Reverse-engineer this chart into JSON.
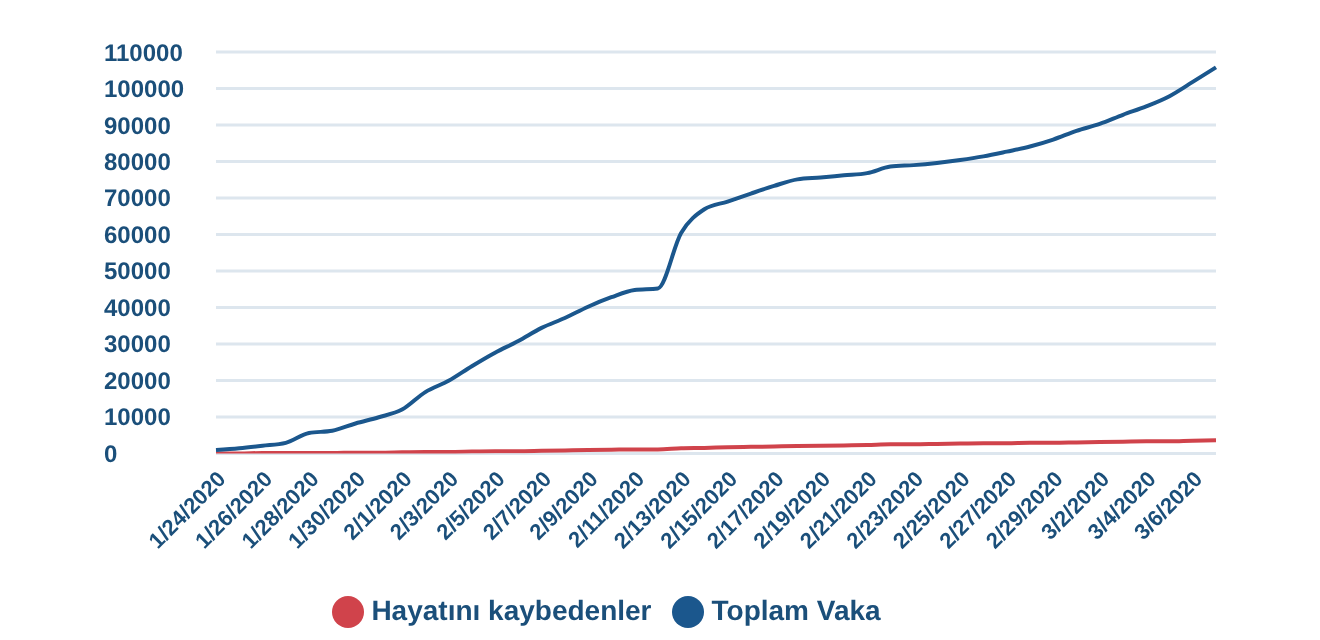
{
  "chart_data": {
    "type": "line",
    "categories": [
      "1/24/2020",
      null,
      "1/26/2020",
      null,
      "1/28/2020",
      null,
      "1/30/2020",
      null,
      "2/1/2020",
      null,
      "2/3/2020",
      null,
      "2/5/2020",
      null,
      "2/7/2020",
      null,
      "2/9/2020",
      null,
      "2/11/2020",
      null,
      "2/13/2020",
      null,
      "2/15/2020",
      null,
      "2/17/2020",
      null,
      "2/19/2020",
      null,
      "2/21/2020",
      null,
      "2/23/2020",
      null,
      "2/25/2020",
      null,
      "2/27/2020",
      null,
      "2/29/2020",
      null,
      "3/2/2020",
      null,
      "3/4/2020",
      null,
      "3/6/2020",
      null
    ],
    "series": [
      {
        "name": "Hayatını kaybedenler",
        "color": "#d0434b",
        "values": [
          0,
          0,
          100,
          100,
          100,
          100,
          200,
          200,
          300,
          400,
          400,
          500,
          600,
          600,
          700,
          800,
          900,
          1000,
          1100,
          1100,
          1400,
          1500,
          1700,
          1800,
          1900,
          2000,
          2100,
          2200,
          2300,
          2500,
          2500,
          2600,
          2700,
          2800,
          2800,
          2900,
          2900,
          3000,
          3100,
          3200,
          3300,
          3300,
          3500,
          3600
        ]
      },
      {
        "name": "Toplam Vaka",
        "color": "#1b578d",
        "values": [
          900,
          1400,
          2100,
          2900,
          5600,
          6200,
          8200,
          9900,
          12000,
          16800,
          19900,
          23900,
          27600,
          30800,
          34400,
          37100,
          40200,
          42800,
          44800,
          45200,
          60400,
          66900,
          69000,
          71200,
          73300,
          75100,
          75600,
          76200,
          76800,
          78600,
          79000,
          79600,
          80400,
          81400,
          82700,
          84100,
          86000,
          88400,
          90300,
          92800,
          95100,
          97900,
          101800,
          105800
        ]
      }
    ],
    "ylim": [
      0,
      110000
    ],
    "yticks": [
      0,
      10000,
      20000,
      30000,
      40000,
      50000,
      60000,
      70000,
      80000,
      90000,
      100000,
      110000
    ],
    "grid": "y",
    "legend": "bottom",
    "marker": "none",
    "line_style": "solid"
  }
}
